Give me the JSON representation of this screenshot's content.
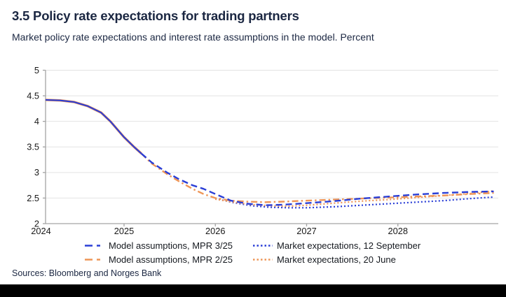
{
  "chart_data": {
    "type": "line",
    "title": "3.5 Policy rate expectations for trading partners",
    "subtitle": "Market policy rate expectations and interest rate assumptions in the model. Percent",
    "unit": "Percent",
    "xlabel": "",
    "ylabel": "",
    "x_range": [
      2024.14,
      2029.1
    ],
    "ylim": [
      2,
      5
    ],
    "y_ticks": [
      2,
      2.5,
      3,
      3.5,
      4,
      4.5,
      5
    ],
    "x_tick_marks": [
      2025,
      2026,
      2027,
      2028
    ],
    "x_labels": [
      {
        "text": "2024",
        "year": 2024.09
      },
      {
        "text": "2025",
        "year": 2025
      },
      {
        "text": "2026",
        "year": 2026
      },
      {
        "text": "2027",
        "year": 2027
      },
      {
        "text": "2028",
        "year": 2028
      }
    ],
    "grid": true,
    "legend_position": "bottom",
    "series": [
      {
        "id": "history",
        "name": "",
        "color": "blue",
        "underlay": "orange",
        "style": "solid",
        "in_legend": false,
        "points": [
          [
            2024.14,
            4.42
          ],
          [
            2024.3,
            4.41
          ],
          [
            2024.45,
            4.38
          ],
          [
            2024.6,
            4.3
          ],
          [
            2024.75,
            4.17
          ],
          [
            2024.85,
            4.0
          ],
          [
            2025.0,
            3.69
          ],
          [
            2025.11,
            3.5
          ],
          [
            2025.19,
            3.37
          ]
        ]
      },
      {
        "id": "model-mpr-3-25",
        "name": "Model assumptions, MPR 3/25",
        "color": "blue",
        "style": "dash",
        "in_legend": true,
        "points": [
          [
            2025.19,
            3.37
          ],
          [
            2025.3,
            3.2
          ],
          [
            2025.47,
            3.0
          ],
          [
            2025.6,
            2.87
          ],
          [
            2025.75,
            2.75
          ],
          [
            2025.87,
            2.68
          ],
          [
            2026.0,
            2.58
          ],
          [
            2026.17,
            2.45
          ],
          [
            2026.35,
            2.39
          ],
          [
            2026.55,
            2.36
          ],
          [
            2026.75,
            2.37
          ],
          [
            2027.0,
            2.4
          ],
          [
            2027.3,
            2.44
          ],
          [
            2027.6,
            2.49
          ],
          [
            2027.9,
            2.53
          ],
          [
            2028.2,
            2.57
          ],
          [
            2028.5,
            2.6
          ],
          [
            2028.8,
            2.62
          ],
          [
            2029.05,
            2.63
          ]
        ]
      },
      {
        "id": "model-mpr-2-25",
        "name": "Model assumptions, MPR 2/25",
        "color": "orange",
        "style": "dashdot",
        "in_legend": true,
        "points": [
          [
            2025.19,
            3.37
          ],
          [
            2025.3,
            3.18
          ],
          [
            2025.47,
            2.97
          ],
          [
            2025.6,
            2.83
          ],
          [
            2025.75,
            2.68
          ],
          [
            2025.87,
            2.58
          ],
          [
            2026.0,
            2.5
          ],
          [
            2026.17,
            2.45
          ],
          [
            2026.35,
            2.43
          ],
          [
            2026.55,
            2.42
          ],
          [
            2026.75,
            2.43
          ],
          [
            2027.0,
            2.45
          ],
          [
            2027.3,
            2.47
          ],
          [
            2027.6,
            2.49
          ],
          [
            2027.9,
            2.51
          ],
          [
            2028.2,
            2.53
          ],
          [
            2028.5,
            2.55
          ],
          [
            2028.8,
            2.58
          ],
          [
            2029.05,
            2.6
          ]
        ]
      },
      {
        "id": "market-12-september",
        "name": "Market expectations, 12 September",
        "color": "blue",
        "style": "dot",
        "in_legend": true,
        "points": [
          [
            2026.0,
            2.49
          ],
          [
            2026.2,
            2.41
          ],
          [
            2026.4,
            2.35
          ],
          [
            2026.6,
            2.32
          ],
          [
            2026.8,
            2.31
          ],
          [
            2027.0,
            2.31
          ],
          [
            2027.3,
            2.33
          ],
          [
            2027.6,
            2.36
          ],
          [
            2027.9,
            2.39
          ],
          [
            2028.2,
            2.42
          ],
          [
            2028.5,
            2.45
          ],
          [
            2028.8,
            2.49
          ],
          [
            2029.05,
            2.52
          ]
        ]
      },
      {
        "id": "market-20-june",
        "name": "Market expectations, 20 June",
        "color": "orange",
        "style": "dot",
        "in_legend": true,
        "points": [
          [
            2026.0,
            2.48
          ],
          [
            2026.2,
            2.42
          ],
          [
            2026.4,
            2.37
          ],
          [
            2026.6,
            2.35
          ],
          [
            2026.8,
            2.34
          ],
          [
            2027.0,
            2.36
          ],
          [
            2027.3,
            2.4
          ],
          [
            2027.6,
            2.44
          ],
          [
            2027.9,
            2.47
          ],
          [
            2028.2,
            2.51
          ],
          [
            2028.5,
            2.55
          ],
          [
            2028.8,
            2.59
          ],
          [
            2029.05,
            2.64
          ]
        ]
      }
    ]
  },
  "footer": {
    "sources": "Sources: Bloomberg and Norges Bank"
  },
  "colors": {
    "blue": "#2a3ed6",
    "orange": "#ee9557",
    "grid": "#e3e3e3",
    "axis": "#a3a3a3",
    "tick_text": "#191919",
    "heading_text": "#1b2742",
    "legend_text": "#15191f",
    "bottom_bar": "#000000"
  }
}
